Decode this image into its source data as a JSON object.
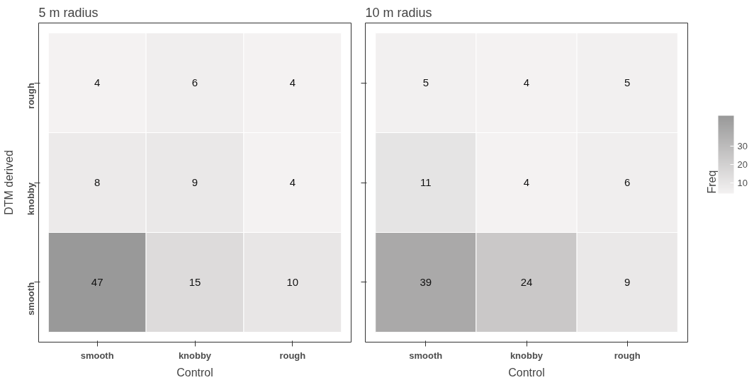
{
  "chart_data": [
    {
      "type": "heatmap",
      "title": "5 m radius",
      "xlabel": "Control",
      "ylabel": "DTM derived",
      "categories": [
        "smooth",
        "knobby",
        "rough"
      ],
      "y_categories": [
        "rough",
        "knobby",
        "smooth"
      ],
      "cells": [
        [
          4,
          6,
          4
        ],
        [
          8,
          9,
          4
        ],
        [
          47,
          15,
          10
        ]
      ],
      "data_labels": true
    },
    {
      "type": "heatmap",
      "title": "10 m radius",
      "xlabel": "Control",
      "categories": [
        "smooth",
        "knobby",
        "rough"
      ],
      "y_categories": [
        null,
        null,
        null
      ],
      "cells": [
        [
          5,
          4,
          5
        ],
        [
          11,
          4,
          6
        ],
        [
          39,
          24,
          9
        ]
      ],
      "clim": [
        4,
        47
      ],
      "clabel": "Freq",
      "cticks": [
        10,
        20,
        30
      ],
      "tick_labels": "x",
      "data_labels": true
    }
  ]
}
